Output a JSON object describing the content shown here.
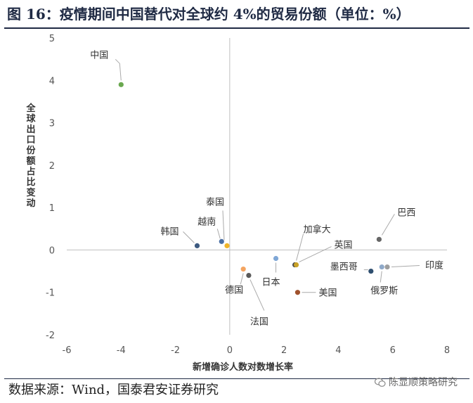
{
  "title": "图 16：疫情期间中国替代对全球约 4%的贸易份额（单位：%）",
  "source": "数据来源：Wind，国泰君安证券研究",
  "watermark": "陈显顺策略研究",
  "watermark_icon": "wechat-icon",
  "chart_data": {
    "type": "scatter",
    "title": "",
    "xlabel": "新增确诊人数对数增长率",
    "ylabel": "全球出口份额占比变动",
    "xlim": [
      -6,
      8
    ],
    "ylim": [
      -2,
      5
    ],
    "xticks": [
      -6,
      -4,
      -2,
      0,
      2,
      4,
      6,
      8
    ],
    "yticks": [
      -2,
      -1,
      0,
      1,
      2,
      3,
      4,
      5
    ],
    "grid": false,
    "legend": "none",
    "points": [
      {
        "label": "中国",
        "x": -4.0,
        "y": 3.9,
        "color": "#6aa84f"
      },
      {
        "label": "韩国",
        "x": -1.2,
        "y": 0.1,
        "color": "#3d5a80"
      },
      {
        "label": "越南",
        "x": -0.3,
        "y": 0.2,
        "color": "#4a6fa5"
      },
      {
        "label": "泰国",
        "x": -0.1,
        "y": 0.1,
        "color": "#f0b429"
      },
      {
        "label": "德国",
        "x": 0.5,
        "y": -0.45,
        "color": "#f4a460"
      },
      {
        "label": "法国",
        "x": 0.7,
        "y": -0.6,
        "color": "#5a5a5a"
      },
      {
        "label": "日本",
        "x": 1.7,
        "y": -0.2,
        "color": "#7fa7d6"
      },
      {
        "label": "加拿大",
        "x": 2.4,
        "y": -0.35,
        "color": "#4a4a4a"
      },
      {
        "label": "英国",
        "x": 2.45,
        "y": -0.35,
        "color": "#c9a227"
      },
      {
        "label": "美国",
        "x": 2.5,
        "y": -1.0,
        "color": "#a0522d"
      },
      {
        "label": "巴西",
        "x": 5.5,
        "y": 0.25,
        "color": "#666666"
      },
      {
        "label": "墨西哥",
        "x": 5.2,
        "y": -0.5,
        "color": "#2f4f6f"
      },
      {
        "label": "俄罗斯",
        "x": 5.6,
        "y": -0.4,
        "color": "#8fa9c9"
      },
      {
        "label": "印度",
        "x": 5.8,
        "y": -0.4,
        "color": "#9e9e9e"
      }
    ]
  }
}
